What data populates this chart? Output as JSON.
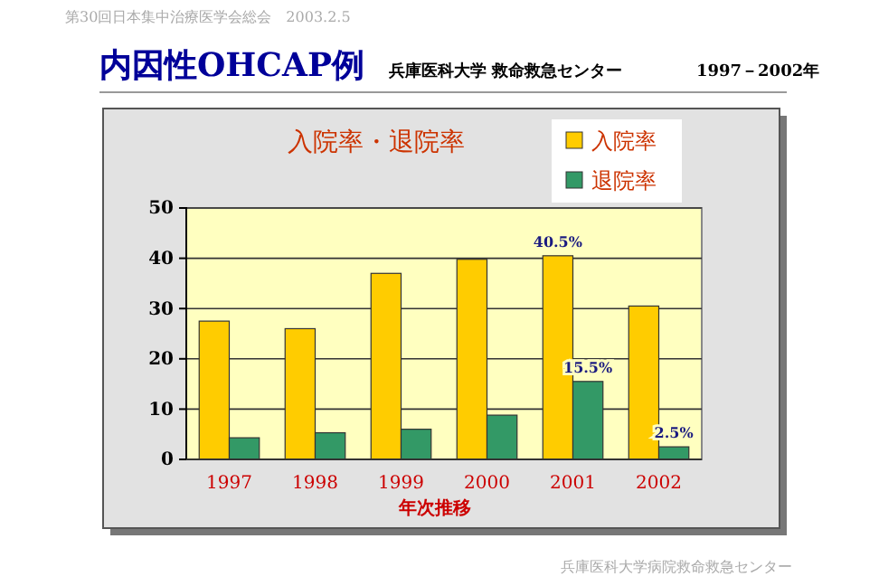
{
  "chart_data": {
    "type": "bar",
    "title": "入院率・退院率",
    "annotations": [
      "第30回日本集中治療医学会総会　2003.2.5",
      "内因性OHCAP例",
      "兵庫医科大学 救命救急センター",
      "1997－2002年",
      "兵庫医科大学病院救命救急センター"
    ],
    "xlabel": "年次推移",
    "categories": [
      "1997",
      "1998",
      "1999",
      "2000",
      "2001",
      "2002"
    ],
    "series": [
      {
        "name": "入院率",
        "color": "#ffcc00",
        "values": [
          27.5,
          26,
          37,
          39.8,
          40.5,
          30.5
        ],
        "value_labels": [
          null,
          null,
          null,
          null,
          "40.5%",
          null
        ]
      },
      {
        "name": "退院率",
        "color": "#339966",
        "values": [
          4.3,
          5.3,
          6,
          8.8,
          15.5,
          2.5
        ],
        "value_labels": [
          null,
          null,
          null,
          null,
          "15.5%",
          "2.5%"
        ]
      }
    ],
    "ylim": [
      0,
      50
    ],
    "yticks": [
      0,
      10,
      20,
      30,
      40,
      50
    ],
    "grid": "y",
    "legend": "top right"
  }
}
